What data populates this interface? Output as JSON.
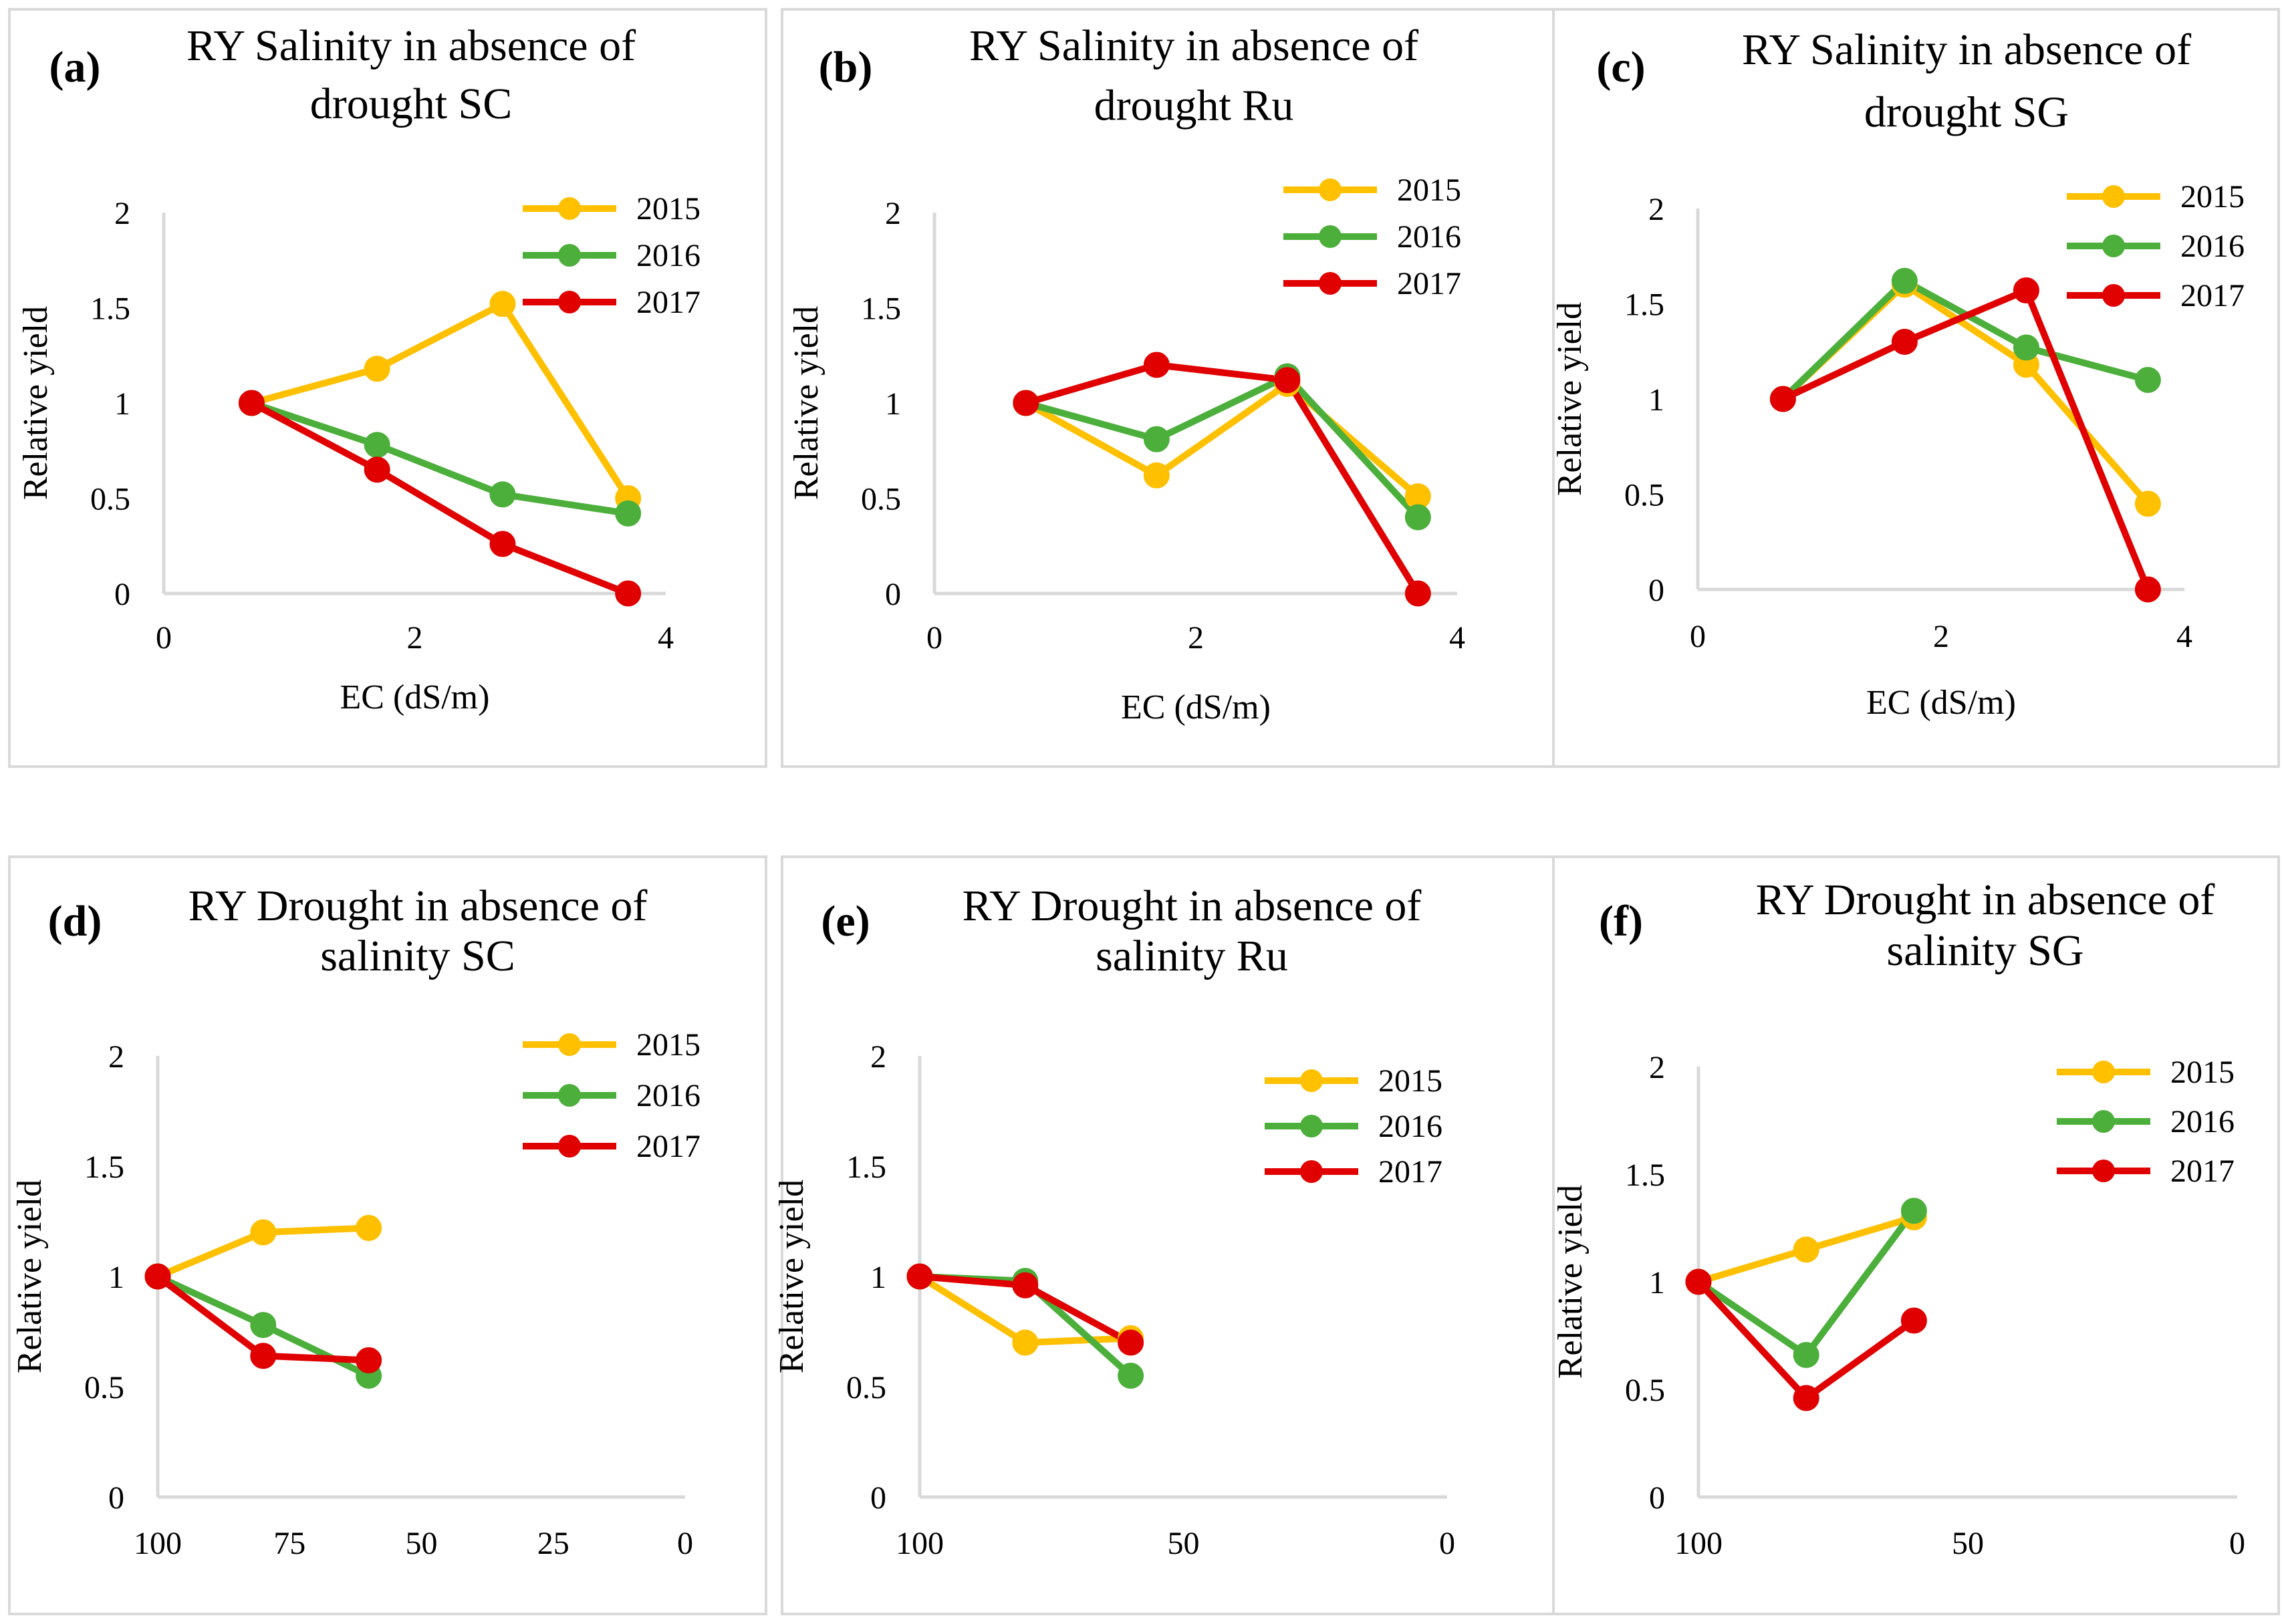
{
  "chart_data": [
    {
      "type": "line",
      "letter": "a",
      "title_lines": [
        "RY Salinity in absence of",
        "drought SC"
      ],
      "xlabel": "EC (dS/m)",
      "ylabel": "Relative yield",
      "xlim": [
        0,
        4
      ],
      "ylim": [
        0,
        2
      ],
      "xticks": [
        "0",
        "2",
        "4"
      ],
      "yticks": [
        "0",
        "0.5",
        "1",
        "1.5",
        "2"
      ],
      "x": [
        0.7,
        1.7,
        2.7,
        3.7
      ],
      "series": [
        {
          "name": "2015",
          "color": "#FFC000",
          "values": [
            1,
            1.18,
            1.52,
            0.5
          ]
        },
        {
          "name": "2016",
          "color": "#4CAF3B",
          "values": [
            1,
            0.78,
            0.52,
            0.42
          ]
        },
        {
          "name": "2017",
          "color": "#E00000",
          "values": [
            1,
            0.65,
            0.26,
            0
          ]
        }
      ]
    },
    {
      "type": "line",
      "letter": "b",
      "title_lines": [
        "RY Salinity in absence of",
        "drought Ru"
      ],
      "xlabel": "EC (dS/m)",
      "ylabel": "Relative yield",
      "xlim": [
        0,
        4
      ],
      "ylim": [
        0,
        2
      ],
      "xticks": [
        "0",
        "2",
        "4"
      ],
      "yticks": [
        "0",
        "0.5",
        "1",
        "1.5",
        "2"
      ],
      "x": [
        0.7,
        1.7,
        2.7,
        3.7
      ],
      "series": [
        {
          "name": "2015",
          "color": "#FFC000",
          "values": [
            1,
            0.62,
            1.1,
            0.51
          ]
        },
        {
          "name": "2016",
          "color": "#4CAF3B",
          "values": [
            1,
            0.81,
            1.14,
            0.4
          ]
        },
        {
          "name": "2017",
          "color": "#E00000",
          "values": [
            1,
            1.2,
            1.12,
            0
          ]
        }
      ]
    },
    {
      "type": "line",
      "letter": "c",
      "title_lines": [
        "RY Salinity in absence of",
        "drought SG"
      ],
      "xlabel": "EC (dS/m)",
      "ylabel": "Relative yield",
      "xlim": [
        0,
        4
      ],
      "ylim": [
        0,
        2
      ],
      "xticks": [
        "0",
        "2",
        "4"
      ],
      "yticks": [
        "0",
        "0.5",
        "1",
        "1.5",
        "2"
      ],
      "x": [
        0.7,
        1.7,
        2.7,
        3.7
      ],
      "series": [
        {
          "name": "2015",
          "color": "#FFC000",
          "values": [
            1,
            1.6,
            1.18,
            0.45
          ]
        },
        {
          "name": "2016",
          "color": "#4CAF3B",
          "values": [
            1,
            1.62,
            1.27,
            1.1
          ]
        },
        {
          "name": "2017",
          "color": "#E00000",
          "values": [
            1,
            1.3,
            1.57,
            0
          ]
        }
      ]
    },
    {
      "type": "line",
      "letter": "d",
      "title_lines": [
        "RY Drought in absence of",
        "salinity SC"
      ],
      "xlabel": "",
      "ylabel": "Relative yield",
      "xlim": [
        100,
        0
      ],
      "ylim": [
        0,
        2
      ],
      "xticks": [
        "100",
        "75",
        "50",
        "25",
        "0"
      ],
      "yticks": [
        "0",
        "0.5",
        "1",
        "1.5",
        "2"
      ],
      "x": [
        100,
        80,
        60
      ],
      "series": [
        {
          "name": "2015",
          "color": "#FFC000",
          "values": [
            1,
            1.2,
            1.22
          ]
        },
        {
          "name": "2016",
          "color": "#4CAF3B",
          "values": [
            1,
            0.78,
            0.55
          ]
        },
        {
          "name": "2017",
          "color": "#E00000",
          "values": [
            1,
            0.64,
            0.62
          ]
        }
      ]
    },
    {
      "type": "line",
      "letter": "e",
      "title_lines": [
        "RY Drought in absence of",
        "salinity Ru"
      ],
      "xlabel": "",
      "ylabel": "Relative yield",
      "xlim": [
        100,
        0
      ],
      "ylim": [
        0,
        2
      ],
      "xticks": [
        "100",
        "50",
        "0"
      ],
      "yticks": [
        "0",
        "0.5",
        "1",
        "1.5",
        "2"
      ],
      "x": [
        100,
        80,
        60
      ],
      "series": [
        {
          "name": "2015",
          "color": "#FFC000",
          "values": [
            1,
            0.7,
            0.72
          ]
        },
        {
          "name": "2016",
          "color": "#4CAF3B",
          "values": [
            1,
            0.98,
            0.55
          ]
        },
        {
          "name": "2017",
          "color": "#E00000",
          "values": [
            1,
            0.96,
            0.7
          ]
        }
      ]
    },
    {
      "type": "line",
      "letter": "f",
      "title_lines": [
        "RY Drought in absence of",
        "salinity SG"
      ],
      "xlabel": "",
      "ylabel": "Relative yield",
      "xlim": [
        100,
        0
      ],
      "ylim": [
        0,
        2
      ],
      "xticks": [
        "100",
        "50",
        "0"
      ],
      "yticks": [
        "0",
        "0.5",
        "1",
        "1.5",
        "2"
      ],
      "x": [
        100,
        80,
        60
      ],
      "series": [
        {
          "name": "2015",
          "color": "#FFC000",
          "values": [
            1,
            1.15,
            1.3
          ]
        },
        {
          "name": "2016",
          "color": "#4CAF3B",
          "values": [
            1,
            0.66,
            1.33
          ]
        },
        {
          "name": "2017",
          "color": "#E00000",
          "values": [
            1,
            0.46,
            0.82
          ]
        }
      ]
    }
  ]
}
